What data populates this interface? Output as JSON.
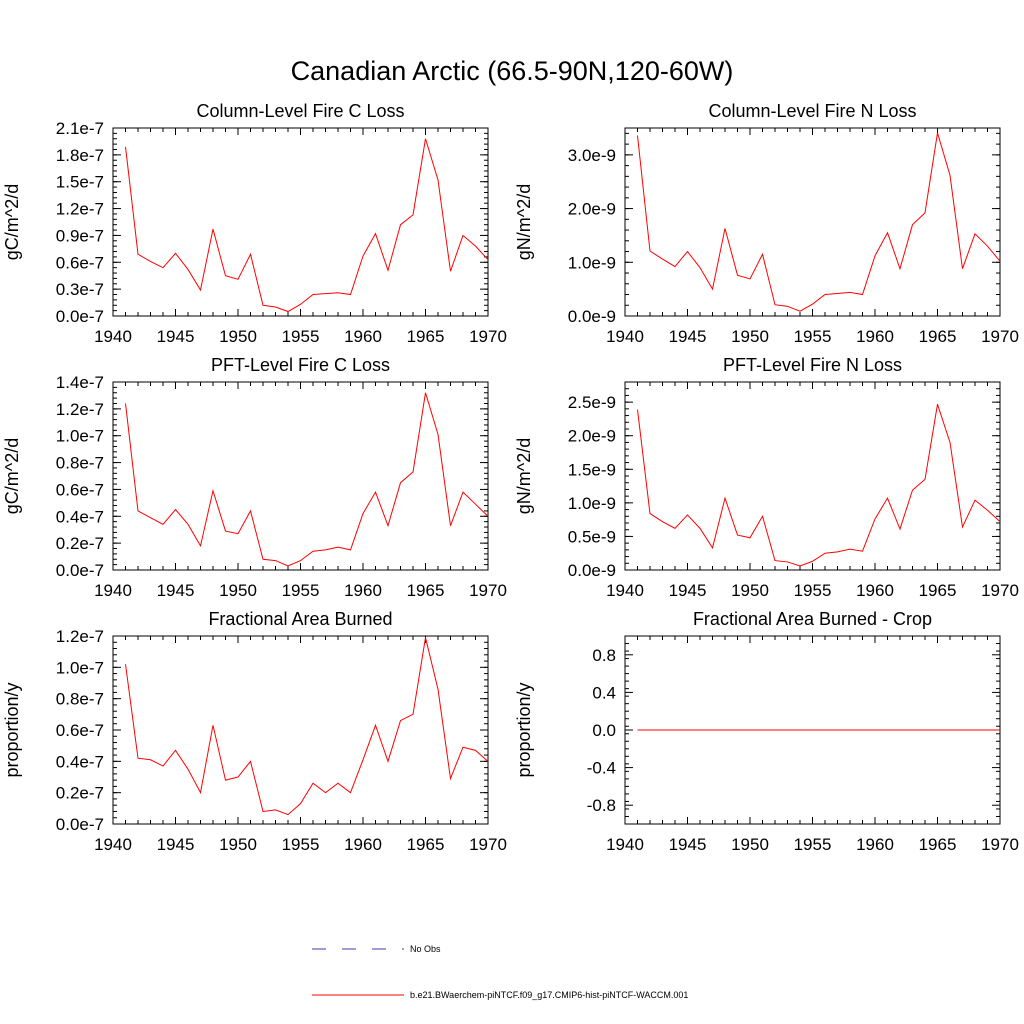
{
  "title": "Canadian Arctic (66.5-90N,120-60W)",
  "legend": [
    {
      "label": "No Obs",
      "color": "#3a3ab0",
      "dash": "dashed"
    },
    {
      "label": "b.e21.BWaerchem-piNTCF.f09_g17.CMIP6-hist-piNTCF-WACCM.001",
      "color": "#ff0000",
      "dash": "solid"
    }
  ],
  "chart_data": [
    {
      "type": "line",
      "title": "Column-Level Fire C Loss",
      "xlabel": "",
      "ylabel": "gC/m^2/d",
      "xlim": [
        1940,
        1970
      ],
      "ylim": [
        0.0,
        2.1e-07
      ],
      "xticks": [
        {
          "v": 1940,
          "label": "1940"
        },
        {
          "v": 1945,
          "label": "1945"
        },
        {
          "v": 1950,
          "label": "1950"
        },
        {
          "v": 1955,
          "label": "1955"
        },
        {
          "v": 1960,
          "label": "1960"
        },
        {
          "v": 1965,
          "label": "1965"
        },
        {
          "v": 1970,
          "label": "1970"
        }
      ],
      "yticks": [
        {
          "v": 0.0,
          "label": "0.0e-7"
        },
        {
          "v": 3e-08,
          "label": "0.3e-7"
        },
        {
          "v": 6e-08,
          "label": "0.6e-7"
        },
        {
          "v": 9e-08,
          "label": "0.9e-7"
        },
        {
          "v": 1.2e-07,
          "label": "1.2e-7"
        },
        {
          "v": 1.5e-07,
          "label": "1.5e-7"
        },
        {
          "v": 1.8e-07,
          "label": "1.8e-7"
        },
        {
          "v": 2.1e-07,
          "label": "2.1e-7"
        }
      ],
      "x": [
        1941,
        1942,
        1943,
        1944,
        1945,
        1946,
        1947,
        1948,
        1949,
        1950,
        1951,
        1952,
        1953,
        1954,
        1955,
        1956,
        1957,
        1958,
        1959,
        1960,
        1961,
        1962,
        1963,
        1964,
        1965,
        1966,
        1967,
        1968,
        1969,
        1970
      ],
      "series": [
        {
          "color": "#ff0000",
          "values": [
            1.89e-07,
            6.9e-08,
            6.1e-08,
            5.4e-08,
            7e-08,
            5.2e-08,
            2.9e-08,
            9.7e-08,
            4.5e-08,
            4.1e-08,
            6.9e-08,
            1.2e-08,
            1e-08,
            5e-09,
            1.3e-08,
            2.4e-08,
            2.5e-08,
            2.6e-08,
            2.4e-08,
            6.7e-08,
            9.2e-08,
            5.1e-08,
            1.02e-07,
            1.13e-07,
            1.98e-07,
            1.52e-07,
            5e-08,
            9e-08,
            7.8e-08,
            6.3e-08
          ]
        }
      ]
    },
    {
      "type": "line",
      "title": "Column-Level Fire N Loss",
      "xlabel": "",
      "ylabel": "gN/m^2/d",
      "xlim": [
        1940,
        1970
      ],
      "ylim": [
        0.0,
        3.5e-09
      ],
      "xticks": [
        {
          "v": 1940,
          "label": "1940"
        },
        {
          "v": 1945,
          "label": "1945"
        },
        {
          "v": 1950,
          "label": "1950"
        },
        {
          "v": 1955,
          "label": "1955"
        },
        {
          "v": 1960,
          "label": "1960"
        },
        {
          "v": 1965,
          "label": "1965"
        },
        {
          "v": 1970,
          "label": "1970"
        }
      ],
      "yticks": [
        {
          "v": 0.0,
          "label": "0.0e-9"
        },
        {
          "v": 1e-09,
          "label": "1.0e-9"
        },
        {
          "v": 2e-09,
          "label": "2.0e-9"
        },
        {
          "v": 3e-09,
          "label": "3.0e-9"
        }
      ],
      "x": [
        1941,
        1942,
        1943,
        1944,
        1945,
        1946,
        1947,
        1948,
        1949,
        1950,
        1951,
        1952,
        1953,
        1954,
        1955,
        1956,
        1957,
        1958,
        1959,
        1960,
        1961,
        1962,
        1963,
        1964,
        1965,
        1966,
        1967,
        1968,
        1969,
        1970
      ],
      "series": [
        {
          "color": "#ff0000",
          "values": [
            3.36e-09,
            1.21e-09,
            1.06e-09,
            9.2e-10,
            1.2e-09,
            9e-10,
            5e-10,
            1.63e-09,
            7.6e-10,
            6.9e-10,
            1.15e-09,
            2.1e-10,
            1.8e-10,
            9e-11,
            2.2e-10,
            4e-10,
            4.2e-10,
            4.4e-10,
            4e-10,
            1.12e-09,
            1.55e-09,
            8.8e-10,
            1.7e-09,
            1.92e-09,
            3.41e-09,
            2.62e-09,
            8.8e-10,
            1.53e-09,
            1.3e-09,
            1.02e-09
          ]
        }
      ]
    },
    {
      "type": "line",
      "title": "PFT-Level Fire C Loss",
      "xlabel": "",
      "ylabel": "gC/m^2/d",
      "xlim": [
        1940,
        1970
      ],
      "ylim": [
        0.0,
        1.4e-07
      ],
      "xticks": [
        {
          "v": 1940,
          "label": "1940"
        },
        {
          "v": 1945,
          "label": "1945"
        },
        {
          "v": 1950,
          "label": "1950"
        },
        {
          "v": 1955,
          "label": "1955"
        },
        {
          "v": 1960,
          "label": "1960"
        },
        {
          "v": 1965,
          "label": "1965"
        },
        {
          "v": 1970,
          "label": "1970"
        }
      ],
      "yticks": [
        {
          "v": 0.0,
          "label": "0.0e-7"
        },
        {
          "v": 2e-08,
          "label": "0.2e-7"
        },
        {
          "v": 4e-08,
          "label": "0.4e-7"
        },
        {
          "v": 6e-08,
          "label": "0.6e-7"
        },
        {
          "v": 8e-08,
          "label": "0.8e-7"
        },
        {
          "v": 1e-07,
          "label": "1.0e-7"
        },
        {
          "v": 1.2e-07,
          "label": "1.2e-7"
        },
        {
          "v": 1.4e-07,
          "label": "1.4e-7"
        }
      ],
      "x": [
        1941,
        1942,
        1943,
        1944,
        1945,
        1946,
        1947,
        1948,
        1949,
        1950,
        1951,
        1952,
        1953,
        1954,
        1955,
        1956,
        1957,
        1958,
        1959,
        1960,
        1961,
        1962,
        1963,
        1964,
        1965,
        1966,
        1967,
        1968,
        1969,
        1970
      ],
      "series": [
        {
          "color": "#ff0000",
          "values": [
            1.24e-07,
            4.4e-08,
            3.9e-08,
            3.4e-08,
            4.5e-08,
            3.4e-08,
            1.8e-08,
            5.9e-08,
            2.9e-08,
            2.7e-08,
            4.4e-08,
            8e-09,
            7e-09,
            3e-09,
            7e-09,
            1.4e-08,
            1.5e-08,
            1.7e-08,
            1.5e-08,
            4.2e-08,
            5.8e-08,
            3.3e-08,
            6.5e-08,
            7.3e-08,
            1.32e-07,
            1.01e-07,
            3.3e-08,
            5.8e-08,
            4.9e-08,
            4e-08
          ]
        }
      ]
    },
    {
      "type": "line",
      "title": "PFT-Level Fire N Loss",
      "xlabel": "",
      "ylabel": "gN/m^2/d",
      "xlim": [
        1940,
        1970
      ],
      "ylim": [
        0.0,
        2.8e-09
      ],
      "xticks": [
        {
          "v": 1940,
          "label": "1940"
        },
        {
          "v": 1945,
          "label": "1945"
        },
        {
          "v": 1950,
          "label": "1950"
        },
        {
          "v": 1955,
          "label": "1955"
        },
        {
          "v": 1960,
          "label": "1960"
        },
        {
          "v": 1965,
          "label": "1965"
        },
        {
          "v": 1970,
          "label": "1970"
        }
      ],
      "yticks": [
        {
          "v": 0.0,
          "label": "0.0e-9"
        },
        {
          "v": 5e-10,
          "label": "0.5e-9"
        },
        {
          "v": 1e-09,
          "label": "1.0e-9"
        },
        {
          "v": 1.5e-09,
          "label": "1.5e-9"
        },
        {
          "v": 2e-09,
          "label": "2.0e-9"
        },
        {
          "v": 2.5e-09,
          "label": "2.5e-9"
        }
      ],
      "x": [
        1941,
        1942,
        1943,
        1944,
        1945,
        1946,
        1947,
        1948,
        1949,
        1950,
        1951,
        1952,
        1953,
        1954,
        1955,
        1956,
        1957,
        1958,
        1959,
        1960,
        1961,
        1962,
        1963,
        1964,
        1965,
        1966,
        1967,
        1968,
        1969,
        1970
      ],
      "series": [
        {
          "color": "#ff0000",
          "values": [
            2.39e-09,
            8.4e-10,
            7.2e-10,
            6.2e-10,
            8.2e-10,
            6.2e-10,
            3.3e-10,
            1.07e-09,
            5.2e-10,
            4.8e-10,
            8e-10,
            1.4e-10,
            1.2e-10,
            6e-11,
            1.3e-10,
            2.5e-10,
            2.7e-10,
            3.1e-10,
            2.8e-10,
            7.6e-10,
            1.07e-09,
            6.1e-10,
            1.19e-09,
            1.35e-09,
            2.47e-09,
            1.9e-09,
            6.4e-10,
            1.04e-09,
            8.9e-10,
            7.2e-10
          ]
        }
      ]
    },
    {
      "type": "line",
      "title": "Fractional Area Burned",
      "xlabel": "",
      "ylabel": "proportion/y",
      "xlim": [
        1940,
        1970
      ],
      "ylim": [
        0.0,
        1.2e-07
      ],
      "xticks": [
        {
          "v": 1940,
          "label": "1940"
        },
        {
          "v": 1945,
          "label": "1945"
        },
        {
          "v": 1950,
          "label": "1950"
        },
        {
          "v": 1955,
          "label": "1955"
        },
        {
          "v": 1960,
          "label": "1960"
        },
        {
          "v": 1965,
          "label": "1965"
        },
        {
          "v": 1970,
          "label": "1970"
        }
      ],
      "yticks": [
        {
          "v": 0.0,
          "label": "0.0e-7"
        },
        {
          "v": 2e-08,
          "label": "0.2e-7"
        },
        {
          "v": 4e-08,
          "label": "0.4e-7"
        },
        {
          "v": 6e-08,
          "label": "0.6e-7"
        },
        {
          "v": 8e-08,
          "label": "0.8e-7"
        },
        {
          "v": 1e-07,
          "label": "1.0e-7"
        },
        {
          "v": 1.2e-07,
          "label": "1.2e-7"
        }
      ],
      "x": [
        1941,
        1942,
        1943,
        1944,
        1945,
        1946,
        1947,
        1948,
        1949,
        1950,
        1951,
        1952,
        1953,
        1954,
        1955,
        1956,
        1957,
        1958,
        1959,
        1960,
        1961,
        1962,
        1963,
        1964,
        1965,
        1966,
        1967,
        1968,
        1969,
        1970
      ],
      "series": [
        {
          "color": "#ff0000",
          "values": [
            1.02e-07,
            4.2e-08,
            4.1e-08,
            3.7e-08,
            4.7e-08,
            3.5e-08,
            2e-08,
            6.3e-08,
            2.8e-08,
            3e-08,
            4e-08,
            8e-09,
            9e-09,
            6e-09,
            1.3e-08,
            2.6e-08,
            2e-08,
            2.6e-08,
            2e-08,
            4.1e-08,
            6.3e-08,
            4e-08,
            6.6e-08,
            7e-08,
            1.19e-07,
            8.6e-08,
            2.9e-08,
            4.9e-08,
            4.7e-08,
            4e-08
          ]
        }
      ]
    },
    {
      "type": "line",
      "title": "Fractional Area Burned - Crop",
      "xlabel": "",
      "ylabel": "proportion/y",
      "xlim": [
        1940,
        1970
      ],
      "ylim": [
        -1.0,
        1.0
      ],
      "xticks": [
        {
          "v": 1940,
          "label": "1940"
        },
        {
          "v": 1945,
          "label": "1945"
        },
        {
          "v": 1950,
          "label": "1950"
        },
        {
          "v": 1955,
          "label": "1955"
        },
        {
          "v": 1960,
          "label": "1960"
        },
        {
          "v": 1965,
          "label": "1965"
        },
        {
          "v": 1970,
          "label": "1970"
        }
      ],
      "yticks": [
        {
          "v": -0.8,
          "label": "-0.8"
        },
        {
          "v": -0.4,
          "label": "-0.4"
        },
        {
          "v": 0.0,
          "label": "0.0"
        },
        {
          "v": 0.4,
          "label": "0.4"
        },
        {
          "v": 0.8,
          "label": "0.8"
        }
      ],
      "x": [
        1941,
        1942,
        1943,
        1944,
        1945,
        1946,
        1947,
        1948,
        1949,
        1950,
        1951,
        1952,
        1953,
        1954,
        1955,
        1956,
        1957,
        1958,
        1959,
        1960,
        1961,
        1962,
        1963,
        1964,
        1965,
        1966,
        1967,
        1968,
        1969,
        1970
      ],
      "series": [
        {
          "color": "#ff0000",
          "values": [
            0,
            0,
            0,
            0,
            0,
            0,
            0,
            0,
            0,
            0,
            0,
            0,
            0,
            0,
            0,
            0,
            0,
            0,
            0,
            0,
            0,
            0,
            0,
            0,
            0,
            0,
            0,
            0,
            0,
            0
          ]
        }
      ]
    }
  ]
}
